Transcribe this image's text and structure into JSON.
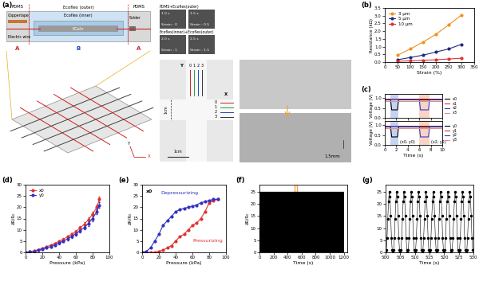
{
  "diagram": {
    "panel": "(a)",
    "cross_section": {
      "pdms": "PDMS",
      "outer": "Ecoflex (outer)",
      "inner": "Ecoflex (inner)",
      "liquid_metal": "EGaIn",
      "tape": "Coppertape",
      "solder": "Solder",
      "wire": "Electric wire",
      "regions": [
        "A",
        "B",
        "A"
      ]
    },
    "photos": {
      "rows": [
        {
          "title": "PDMS+Ecoflex(outer)",
          "frames": [
            {
              "time": "1.0 s",
              "strain": "Strain : 0"
            },
            {
              "time": "1.5 s",
              "strain": "Strain : 0.5"
            }
          ]
        },
        {
          "title": "Ecoflex(inner)+Ecoflex(outer)",
          "frames": [
            {
              "time": "2.0 s",
              "strain": "Strain : 1"
            },
            {
              "time": "2.5 s",
              "strain": "Strain : 1.5"
            }
          ]
        }
      ]
    },
    "grid_axes": [
      "Y",
      "X"
    ],
    "sensor": {
      "y_axis": "Y",
      "x_axis": "X",
      "y_channels": [
        "0",
        "1",
        "2",
        "3"
      ],
      "x_channels": [
        "0",
        "1",
        "2",
        "3"
      ],
      "size": "1cm",
      "scale": "1cm"
    },
    "thickness": "1.5mm"
  },
  "chart_data": [
    {
      "type": "line",
      "panel": "(b)",
      "xlabel": "Strain (%)",
      "ylabel": "Resistance (kΩ)",
      "x": [
        50,
        100,
        150,
        200,
        250,
        300
      ],
      "series": [
        {
          "name": "3 μm",
          "color": "#f0901e",
          "values": [
            0.45,
            0.85,
            1.3,
            1.8,
            2.4,
            3.05
          ]
        },
        {
          "name": "5 μm",
          "color": "#1f2a80",
          "values": [
            0.15,
            0.3,
            0.45,
            0.65,
            0.85,
            1.15
          ]
        },
        {
          "name": "10 μm",
          "color": "#e03030",
          "values": [
            0.05,
            0.08,
            0.12,
            0.15,
            0.2,
            0.25
          ]
        }
      ],
      "marker": "circle",
      "line_style": "solid",
      "xlim": [
        0,
        350
      ],
      "xticks": [
        0,
        50,
        100,
        150,
        200,
        250,
        300,
        350
      ],
      "ylim": [
        0.0,
        3.5
      ],
      "yticks": [
        0.0,
        0.5,
        1.0,
        1.5,
        2.0,
        2.5,
        3.0,
        3.5
      ],
      "legend": "upper left"
    },
    {
      "type": "line",
      "panel": "(c)",
      "ylabel": "Voltage (V)",
      "x": [
        0,
        1,
        1.2,
        2.2,
        2.4,
        6,
        6.2,
        7.6,
        7.8,
        10
      ],
      "series": [
        {
          "name": "x0",
          "color": "#000000",
          "values": [
            0.9,
            0.9,
            0.4,
            0.4,
            0.9,
            0.9,
            0.9,
            0.9,
            0.9,
            0.9
          ]
        },
        {
          "name": "x1",
          "color": "#e03030",
          "values": [
            0.95,
            0.95,
            0.95,
            0.95,
            0.95,
            0.95,
            0.95,
            0.95,
            0.95,
            0.95
          ]
        },
        {
          "name": "x2",
          "color": "#3040c0",
          "values": [
            0.92,
            0.92,
            0.92,
            0.92,
            0.92,
            0.92,
            0.4,
            0.4,
            0.92,
            0.92
          ]
        },
        {
          "name": "x3",
          "color": "#e09090",
          "values": [
            0.85,
            0.85,
            0.85,
            0.85,
            0.85,
            0.85,
            0.85,
            0.85,
            0.85,
            0.85
          ]
        }
      ],
      "marker": "none",
      "line_style": "solid",
      "highlights": [
        {
          "range": [
            1,
            2.4
          ],
          "color": "#9fb7e8"
        },
        {
          "range": [
            6,
            7.8
          ],
          "color": "#f4b6a0"
        }
      ],
      "xlim": [
        0,
        10
      ],
      "xticks": [
        0,
        2,
        4,
        6,
        8,
        10
      ],
      "ylim": [
        0.0,
        1.2
      ],
      "yticks": [
        0.0,
        0.5,
        1.0
      ],
      "legend": "right",
      "tick_labels": "y"
    },
    {
      "type": "line",
      "xlabel": "Time (s)",
      "ylabel": "Voltage (V)",
      "x": [
        0,
        1,
        1.2,
        2.2,
        2.4,
        6,
        6.2,
        7.6,
        7.8,
        10
      ],
      "series": [
        {
          "name": "y0",
          "color": "#000000",
          "values": [
            0.9,
            0.9,
            0.4,
            0.4,
            0.9,
            0.9,
            0.9,
            0.9,
            0.9,
            0.9
          ]
        },
        {
          "name": "y1",
          "color": "#e03030",
          "values": [
            0.95,
            0.95,
            0.95,
            0.95,
            0.95,
            0.95,
            0.95,
            0.95,
            0.95,
            0.95
          ]
        },
        {
          "name": "y2",
          "color": "#3040c0",
          "values": [
            0.92,
            0.92,
            0.92,
            0.92,
            0.92,
            0.92,
            0.4,
            0.4,
            0.92,
            0.92
          ]
        },
        {
          "name": "y3",
          "color": "#e09090",
          "values": [
            0.85,
            0.85,
            0.85,
            0.85,
            0.85,
            0.85,
            0.85,
            0.85,
            0.85,
            0.85
          ]
        }
      ],
      "marker": "none",
      "line_style": "solid",
      "highlights": [
        {
          "range": [
            1,
            2.4
          ],
          "color": "#9fb7e8",
          "text": "(x0, y0)"
        },
        {
          "range": [
            6,
            7.8
          ],
          "color": "#f4b6a0",
          "text": "(x2, y2)"
        }
      ],
      "xlim": [
        0,
        10
      ],
      "xticks": [
        0,
        2,
        4,
        6,
        8,
        10
      ],
      "ylim": [
        0.0,
        1.2
      ],
      "yticks": [
        0.0,
        0.5,
        1.0
      ],
      "legend": "right"
    },
    {
      "type": "line",
      "panel": "(d)",
      "xlabel": "Pressure (kPa)",
      "ylabel": "ΔR/R₀",
      "x": [
        0,
        5,
        10,
        15,
        20,
        25,
        30,
        35,
        40,
        45,
        50,
        55,
        60,
        65,
        70,
        75,
        80,
        85,
        88
      ],
      "series": [
        {
          "name": "x0",
          "color": "#e03030",
          "values": [
            0,
            0.3,
            0.7,
            1.2,
            1.8,
            2.5,
            3.2,
            4.0,
            4.9,
            5.8,
            6.9,
            8.0,
            9.3,
            10.8,
            12.5,
            14.5,
            17.0,
            20.0,
            23.5
          ],
          "errors": [
            0,
            0.1,
            0.2,
            0.2,
            0.3,
            0.3,
            0.4,
            0.4,
            0.5,
            0.5,
            0.6,
            0.6,
            0.7,
            0.8,
            0.9,
            1.0,
            1.1,
            1.2,
            1.3
          ]
        },
        {
          "name": "y0",
          "color": "#3030c0",
          "values": [
            0,
            0.2,
            0.5,
            0.9,
            1.4,
            2.0,
            2.6,
            3.3,
            4.1,
            5.0,
            6.0,
            7.0,
            8.2,
            9.5,
            11.0,
            12.8,
            15.0,
            18.0,
            21.0
          ],
          "errors": [
            0,
            0.1,
            0.2,
            0.2,
            0.3,
            0.3,
            0.4,
            0.4,
            0.5,
            0.5,
            0.6,
            0.6,
            0.7,
            0.8,
            0.9,
            1.0,
            1.1,
            1.2,
            1.3
          ]
        }
      ],
      "marker": "circle",
      "line_style": "solid",
      "xlim": [
        0,
        100
      ],
      "xticks": [
        0,
        20,
        40,
        60,
        80,
        100
      ],
      "ylim": [
        0,
        30
      ],
      "yticks": [
        0,
        5,
        10,
        15,
        20,
        25,
        30
      ],
      "legend": "upper left"
    },
    {
      "type": "line",
      "panel": "(e)",
      "xlabel": "Pressure (kPa)",
      "ylabel": "ΔR/R₀",
      "x": [
        0,
        5,
        10,
        15,
        20,
        25,
        30,
        35,
        40,
        45,
        50,
        55,
        60,
        65,
        70,
        75,
        80,
        85,
        90
      ],
      "series": [
        {
          "name": "Pressurizing",
          "color": "#e03030",
          "values": [
            0,
            0,
            0,
            0,
            0.5,
            1,
            2,
            3,
            5,
            7,
            8,
            10,
            12,
            13,
            15,
            18,
            22,
            23,
            23.5
          ]
        },
        {
          "name": "Depressurizing",
          "color": "#3030c0",
          "values": [
            0,
            0.5,
            2,
            5,
            8,
            12,
            14,
            16,
            18,
            19,
            19.5,
            20,
            20.5,
            21,
            22,
            22.5,
            23,
            23.5,
            23.5
          ]
        }
      ],
      "annotations": [
        {
          "text": "x0",
          "color": "#000000"
        },
        {
          "text": "Depressurizing",
          "color": "#3030c0"
        },
        {
          "text": "Pressurizing",
          "color": "#e03030"
        }
      ],
      "marker": "circle",
      "line_style": "solid",
      "xlim": [
        0,
        100
      ],
      "xticks": [
        0,
        20,
        40,
        60,
        80,
        100
      ],
      "ylim": [
        0,
        30
      ],
      "yticks": [
        0,
        5,
        10,
        15,
        20,
        25,
        30
      ]
    },
    {
      "type": "cyclic",
      "panel": "(f)",
      "xlabel": "Time (s)",
      "ylabel": "ΔR/R₀",
      "cycle_t": [
        0,
        0.25,
        0.5,
        0.75,
        1.0,
        1.25,
        1.5,
        1.75,
        2.0,
        2.25
      ],
      "cycle_values": [
        0,
        1,
        6,
        14,
        21,
        25,
        23,
        15,
        6,
        1
      ],
      "period": 2.5,
      "start": 0,
      "cycles": 480,
      "color": "#000000",
      "marker": "none",
      "line_style": "solid",
      "highlight": {
        "range": [
          500,
          530
        ],
        "color": "#f0a050"
      },
      "xlim": [
        0,
        1250
      ],
      "xticks": [
        0,
        200,
        400,
        600,
        800,
        1000,
        1200
      ],
      "ylim": [
        0,
        28
      ],
      "yticks": [
        0,
        5,
        10,
        15,
        20,
        25
      ]
    },
    {
      "type": "cyclic",
      "panel": "(g)",
      "xlabel": "Time (s)",
      "cycle_t": [
        0,
        0.25,
        0.5,
        0.75,
        1.0,
        1.25,
        1.5,
        1.75,
        2.0,
        2.25
      ],
      "cycle_values": [
        0,
        1,
        6,
        14,
        21,
        25,
        23,
        15,
        6,
        1
      ],
      "period": 2.5,
      "start": 500,
      "cycles": 12,
      "color": "#000000",
      "marker": "circle",
      "line_style": "solid",
      "xlim": [
        500,
        530
      ],
      "xticks": [
        500,
        505,
        510,
        515,
        520,
        525,
        530
      ],
      "ylim": [
        0,
        28
      ],
      "yticks": [
        0,
        5,
        10,
        15,
        20,
        25
      ]
    }
  ]
}
